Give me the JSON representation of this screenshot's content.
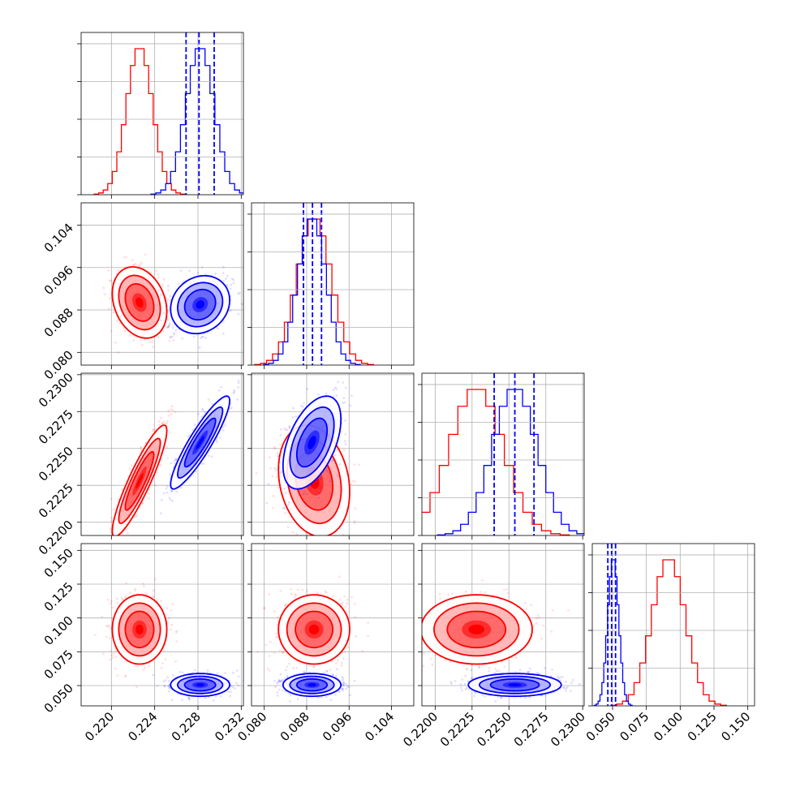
{
  "chart_data": {
    "type": "corner",
    "parameters": [
      {
        "range": [
          0.2172,
          0.2322
        ],
        "ticks": [
          0.22,
          0.224,
          0.228,
          0.232
        ],
        "tick_labels": [
          "0.220",
          "0.224",
          "0.228",
          "0.232"
        ]
      },
      {
        "range": [
          0.0776,
          0.1082
        ],
        "ticks": [
          0.08,
          0.088,
          0.096,
          0.104
        ],
        "tick_labels": [
          "0.080",
          "0.088",
          "0.096",
          "0.104"
        ]
      },
      {
        "range": [
          0.2191,
          0.2301
        ],
        "ticks": [
          0.22,
          0.2225,
          0.225,
          0.2275,
          0.23
        ],
        "tick_labels": [
          "0.2200",
          "0.2225",
          "0.2250",
          "0.2275",
          "0.2300"
        ]
      },
      {
        "range": [
          0.035,
          0.155
        ],
        "ticks": [
          0.05,
          0.075,
          0.1,
          0.125,
          0.15
        ],
        "tick_labels": [
          "0.050",
          "0.075",
          "0.100",
          "0.125",
          "0.150"
        ]
      }
    ],
    "series": [
      {
        "color": "#ff0000",
        "means": [
          0.2226,
          0.0894,
          0.2228,
          0.0915
        ],
        "sigmas": [
          0.0012,
          0.0032,
          0.0018,
          0.0122
        ],
        "correlations": [
          [
            0,
            1,
            -0.25
          ],
          [
            0,
            2,
            0.9
          ],
          [
            1,
            2,
            -0.2
          ],
          [
            0,
            3,
            0.0
          ],
          [
            1,
            3,
            0.0
          ],
          [
            2,
            3,
            0.0
          ]
        ],
        "quantiles": []
      },
      {
        "color": "#0000ff",
        "means": [
          0.2282,
          0.089,
          0.2254,
          0.0505
        ],
        "sigmas": [
          0.0013,
          0.0026,
          0.0015,
          0.004
        ],
        "correlations": [
          [
            0,
            1,
            0.15
          ],
          [
            0,
            2,
            0.9
          ],
          [
            1,
            2,
            0.5
          ],
          [
            0,
            3,
            0.0
          ],
          [
            1,
            3,
            0.0
          ],
          [
            2,
            3,
            0.0
          ]
        ],
        "quantiles": [
          [
            0.2269,
            0.2281,
            0.2295
          ],
          [
            0.0874,
            0.0891,
            0.0908
          ],
          [
            0.224,
            0.2254,
            0.2267
          ],
          [
            0.0465,
            0.0493,
            0.0522
          ]
        ]
      }
    ],
    "grid": true
  }
}
